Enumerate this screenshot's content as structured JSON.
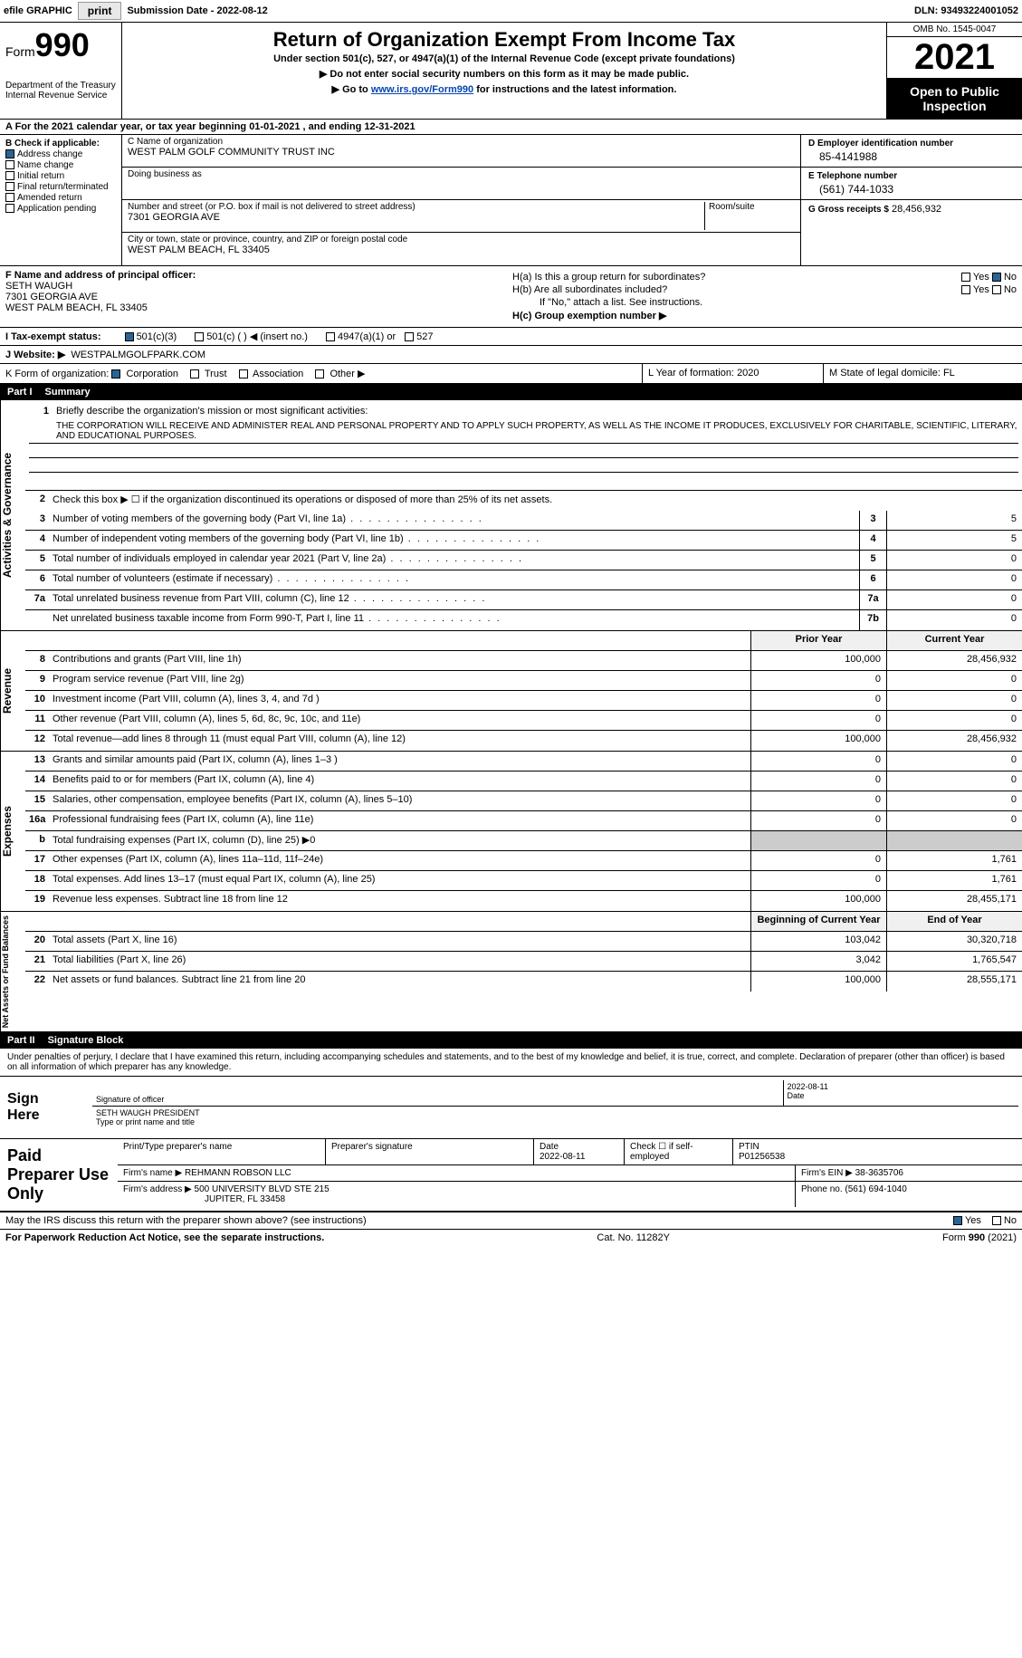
{
  "topbar": {
    "efile_label": "efile GRAPHIC",
    "print_btn": "print",
    "submission_label": "Submission Date - 2022-08-12",
    "dln": "DLN: 93493224001052"
  },
  "header": {
    "form_label": "Form",
    "form_number": "990",
    "dept": "Department of the Treasury\nInternal Revenue Service",
    "title": "Return of Organization Exempt From Income Tax",
    "subtitle": "Under section 501(c), 527, or 4947(a)(1) of the Internal Revenue Code (except private foundations)",
    "instr1": "▶ Do not enter social security numbers on this form as it may be made public.",
    "instr2_pre": "▶ Go to ",
    "instr2_link": "www.irs.gov/Form990",
    "instr2_post": " for instructions and the latest information.",
    "omb": "OMB No. 1545-0047",
    "year": "2021",
    "open_public": "Open to Public Inspection"
  },
  "row_a": "A For the 2021 calendar year, or tax year beginning 01-01-2021   , and ending 12-31-2021",
  "section_b": {
    "heading": "B Check if applicable:",
    "address_change": "Address change",
    "name_change": "Name change",
    "initial_return": "Initial return",
    "final_return": "Final return/terminated",
    "amended_return": "Amended return",
    "application_pending": "Application pending"
  },
  "section_c": {
    "name_label": "C Name of organization",
    "name_val": "WEST PALM GOLF COMMUNITY TRUST INC",
    "dba_label": "Doing business as",
    "dba_val": "",
    "street_label": "Number and street (or P.O. box if mail is not delivered to street address)",
    "room_label": "Room/suite",
    "street_val": "7301 GEORGIA AVE",
    "city_label": "City or town, state or province, country, and ZIP or foreign postal code",
    "city_val": "WEST PALM BEACH, FL  33405"
  },
  "section_d": {
    "ein_label": "D Employer identification number",
    "ein_val": "85-4141988",
    "phone_label": "E Telephone number",
    "phone_val": "(561) 744-1033",
    "gross_label": "G Gross receipts $",
    "gross_val": "28,456,932"
  },
  "section_f": {
    "label": "F  Name and address of principal officer:",
    "name": "SETH WAUGH",
    "street": "7301 GEORGIA AVE",
    "city": "WEST PALM BEACH, FL  33405"
  },
  "section_h": {
    "ha_label": "H(a)  Is this a group return for subordinates?",
    "hb_label": "H(b)  Are all subordinates included?",
    "hb_note": "If \"No,\" attach a list. See instructions.",
    "hc_label": "H(c)  Group exemption number ▶",
    "yes": "Yes",
    "no": "No"
  },
  "row_i": {
    "label": "I  Tax-exempt status:",
    "opt1": "501(c)(3)",
    "opt2": "501(c) (  ) ◀ (insert no.)",
    "opt3": "4947(a)(1) or",
    "opt4": "527"
  },
  "row_j": {
    "label": "J  Website: ▶",
    "val": "WESTPALMGOLFPARK.COM"
  },
  "row_k": {
    "label": "K Form of organization:",
    "corp": "Corporation",
    "trust": "Trust",
    "assoc": "Association",
    "other": "Other ▶"
  },
  "row_l": {
    "label": "L Year of formation:",
    "val": "2020"
  },
  "row_m": {
    "label": "M State of legal domicile:",
    "val": "FL"
  },
  "part1": {
    "num": "Part I",
    "title": "Summary"
  },
  "summary": {
    "vtabs": {
      "ag": "Activities & Governance",
      "rev": "Revenue",
      "exp": "Expenses",
      "na": "Net Assets or Fund Balances"
    },
    "line1_label": "Briefly describe the organization's mission or most significant activities:",
    "line1_text": "THE CORPORATION WILL RECEIVE AND ADMINISTER REAL AND PERSONAL PROPERTY AND TO APPLY SUCH PROPERTY, AS WELL AS THE INCOME IT PRODUCES, EXCLUSIVELY FOR CHARITABLE, SCIENTIFIC, LITERARY, AND EDUCATIONAL PURPOSES.",
    "line2": "Check this box ▶ ☐  if the organization discontinued its operations or disposed of more than 25% of its net assets.",
    "lines_ag": [
      {
        "n": "3",
        "t": "Number of voting members of the governing body (Part VI, line 1a)",
        "c": "3",
        "v": "5"
      },
      {
        "n": "4",
        "t": "Number of independent voting members of the governing body (Part VI, line 1b)",
        "c": "4",
        "v": "5"
      },
      {
        "n": "5",
        "t": "Total number of individuals employed in calendar year 2021 (Part V, line 2a)",
        "c": "5",
        "v": "0"
      },
      {
        "n": "6",
        "t": "Total number of volunteers (estimate if necessary)",
        "c": "6",
        "v": "0"
      },
      {
        "n": "7a",
        "t": "Total unrelated business revenue from Part VIII, column (C), line 12",
        "c": "7a",
        "v": "0"
      },
      {
        "n": "",
        "t": "Net unrelated business taxable income from Form 990-T, Part I, line 11",
        "c": "7b",
        "v": "0"
      }
    ],
    "col_headers": {
      "prior": "Prior Year",
      "current": "Current Year",
      "begin": "Beginning of Current Year",
      "end": "End of Year"
    },
    "lines_rev": [
      {
        "n": "8",
        "t": "Contributions and grants (Part VIII, line 1h)",
        "p": "100,000",
        "c": "28,456,932"
      },
      {
        "n": "9",
        "t": "Program service revenue (Part VIII, line 2g)",
        "p": "0",
        "c": "0"
      },
      {
        "n": "10",
        "t": "Investment income (Part VIII, column (A), lines 3, 4, and 7d )",
        "p": "0",
        "c": "0"
      },
      {
        "n": "11",
        "t": "Other revenue (Part VIII, column (A), lines 5, 6d, 8c, 9c, 10c, and 11e)",
        "p": "0",
        "c": "0"
      },
      {
        "n": "12",
        "t": "Total revenue—add lines 8 through 11 (must equal Part VIII, column (A), line 12)",
        "p": "100,000",
        "c": "28,456,932"
      }
    ],
    "lines_exp": [
      {
        "n": "13",
        "t": "Grants and similar amounts paid (Part IX, column (A), lines 1–3 )",
        "p": "0",
        "c": "0"
      },
      {
        "n": "14",
        "t": "Benefits paid to or for members (Part IX, column (A), line 4)",
        "p": "0",
        "c": "0"
      },
      {
        "n": "15",
        "t": "Salaries, other compensation, employee benefits (Part IX, column (A), lines 5–10)",
        "p": "0",
        "c": "0"
      },
      {
        "n": "16a",
        "t": "Professional fundraising fees (Part IX, column (A), line 11e)",
        "p": "0",
        "c": "0"
      },
      {
        "n": "b",
        "t": "Total fundraising expenses (Part IX, column (D), line 25) ▶0",
        "p": "",
        "c": "",
        "shaded": true
      },
      {
        "n": "17",
        "t": "Other expenses (Part IX, column (A), lines 11a–11d, 11f–24e)",
        "p": "0",
        "c": "1,761"
      },
      {
        "n": "18",
        "t": "Total expenses. Add lines 13–17 (must equal Part IX, column (A), line 25)",
        "p": "0",
        "c": "1,761"
      },
      {
        "n": "19",
        "t": "Revenue less expenses. Subtract line 18 from line 12",
        "p": "100,000",
        "c": "28,455,171"
      }
    ],
    "lines_na": [
      {
        "n": "20",
        "t": "Total assets (Part X, line 16)",
        "p": "103,042",
        "c": "30,320,718"
      },
      {
        "n": "21",
        "t": "Total liabilities (Part X, line 26)",
        "p": "3,042",
        "c": "1,765,547"
      },
      {
        "n": "22",
        "t": "Net assets or fund balances. Subtract line 21 from line 20",
        "p": "100,000",
        "c": "28,555,171"
      }
    ]
  },
  "part2": {
    "num": "Part II",
    "title": "Signature Block"
  },
  "sig": {
    "text": "Under penalties of perjury, I declare that I have examined this return, including accompanying schedules and statements, and to the best of my knowledge and belief, it is true, correct, and complete. Declaration of preparer (other than officer) is based on all information of which preparer has any knowledge.",
    "sign_here": "Sign Here",
    "sig_officer": "Signature of officer",
    "date_val": "2022-08-11",
    "date_label": "Date",
    "name_val": "SETH WAUGH  PRESIDENT",
    "name_label": "Type or print name and title"
  },
  "preparer": {
    "heading": "Paid Preparer Use Only",
    "print_name_label": "Print/Type preparer's name",
    "prep_sig_label": "Preparer's signature",
    "date_label": "Date",
    "date_val": "2022-08-11",
    "check_label": "Check ☐ if self-employed",
    "ptin_label": "PTIN",
    "ptin_val": "P01256538",
    "firm_name_label": "Firm's name    ▶",
    "firm_name_val": "REHMANN ROBSON LLC",
    "firm_ein_label": "Firm's EIN ▶",
    "firm_ein_val": "38-3635706",
    "firm_addr_label": "Firm's address ▶",
    "firm_addr_val1": "500 UNIVERSITY BLVD STE 215",
    "firm_addr_val2": "JUPITER, FL  33458",
    "phone_label": "Phone no.",
    "phone_val": "(561) 694-1040"
  },
  "footer": {
    "discuss": "May the IRS discuss this return with the preparer shown above? (see instructions)",
    "yes": "Yes",
    "no": "No",
    "paperwork": "For Paperwork Reduction Act Notice, see the separate instructions.",
    "cat": "Cat. No. 11282Y",
    "form": "Form 990 (2021)"
  }
}
